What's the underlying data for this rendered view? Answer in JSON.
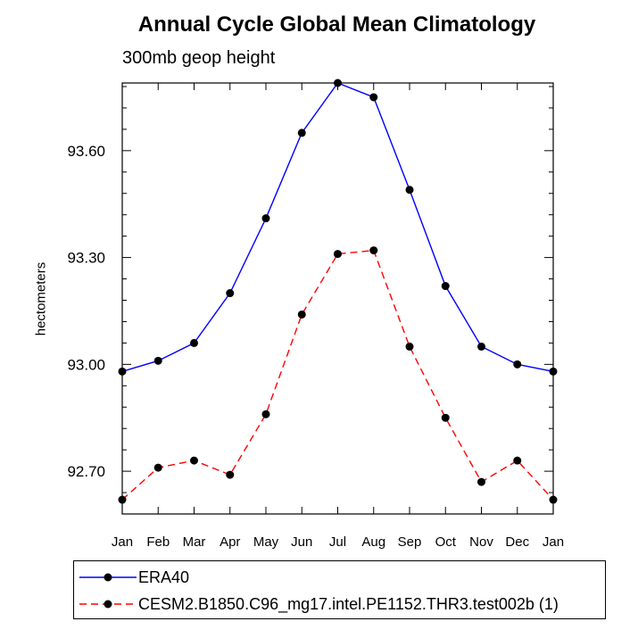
{
  "chart_data": {
    "type": "line",
    "title": "Annual Cycle Global Mean Climatology",
    "subtitle": "300mb geop height",
    "xlabel": "",
    "ylabel": "hectometers",
    "categories": [
      "Jan",
      "Feb",
      "Mar",
      "Apr",
      "May",
      "Jun",
      "Jul",
      "Aug",
      "Sep",
      "Oct",
      "Nov",
      "Dec",
      "Jan"
    ],
    "yticks": [
      "92.70",
      "93.00",
      "93.30",
      "93.60"
    ],
    "ylim": [
      92.58,
      93.79
    ],
    "series": [
      {
        "name": "ERA40",
        "color": "#0000ff",
        "dash": "solid",
        "values": [
          92.98,
          93.01,
          93.06,
          93.2,
          93.41,
          93.65,
          93.79,
          93.75,
          93.49,
          93.22,
          93.05,
          93.0,
          92.98
        ]
      },
      {
        "name": "CESM2.B1850.C96_mg17.intel.PE1152.THR3.test002b (1)",
        "color": "#ff0000",
        "dash": "dashed",
        "values": [
          92.62,
          92.71,
          92.73,
          92.69,
          92.86,
          93.14,
          93.31,
          93.32,
          93.05,
          92.85,
          92.67,
          92.73,
          92.62
        ]
      }
    ],
    "legend_position": "bottom",
    "grid": false
  }
}
